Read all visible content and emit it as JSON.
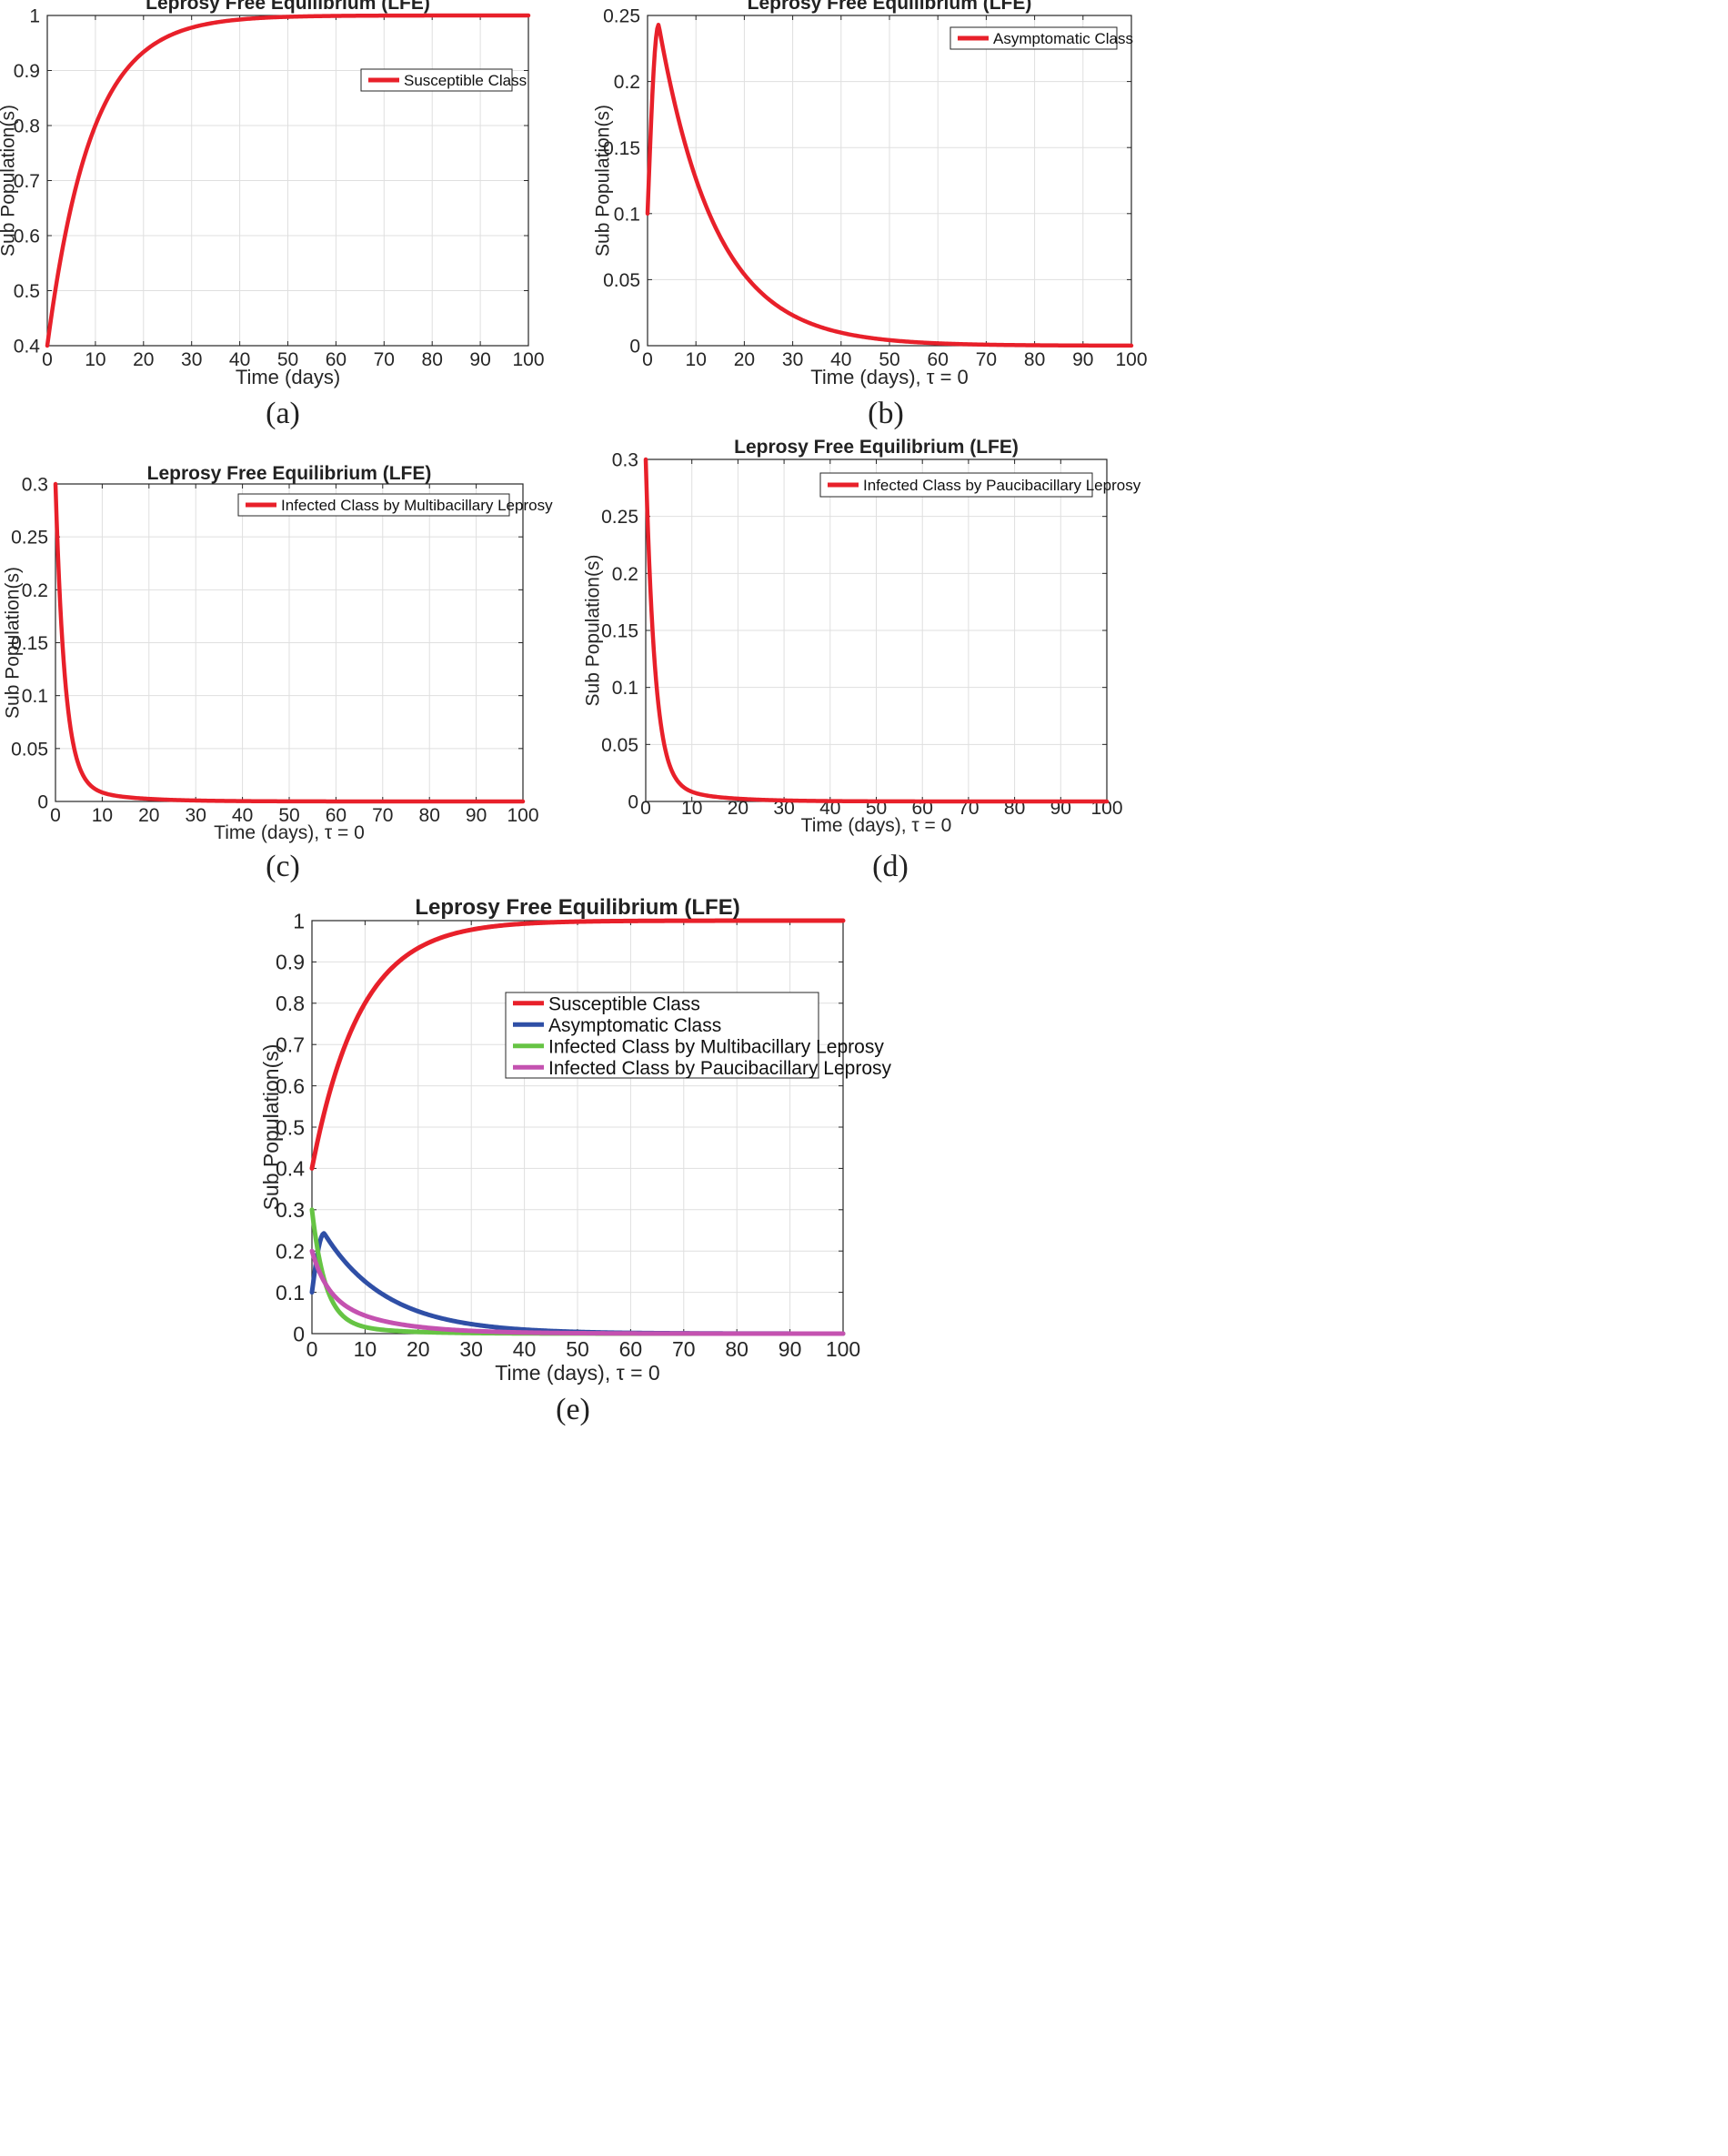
{
  "figure": {
    "description": "Five panel figure of Leprosy Free Equilibrium (LFE) simulations"
  },
  "chart_data": [
    {
      "panel": "a",
      "type": "line",
      "caption": "(a)",
      "title": "Leprosy Free Equilibrium (LFE)",
      "xlabel": "Time (days)",
      "ylabel": "Sub Population(s)",
      "xlim": [
        0,
        100
      ],
      "ylim": [
        0.4,
        1
      ],
      "xticks": [
        0,
        10,
        20,
        30,
        40,
        50,
        60,
        70,
        80,
        90,
        100
      ],
      "yticks": [
        0.4,
        0.5,
        0.6,
        0.7,
        0.8,
        0.9,
        1
      ],
      "ytick_labels": [
        "0.4",
        "0.5",
        "0.6",
        "0.7",
        "0.8",
        "0.9",
        "1"
      ],
      "grid": true,
      "legend_position": "upper-right-inset",
      "series": [
        {
          "name": "Susceptible Class",
          "color": "#e8202a",
          "model": "rise",
          "params": {
            "start": 0.4,
            "end": 1.0,
            "rate": 0.11
          }
        }
      ]
    },
    {
      "panel": "b",
      "type": "line",
      "caption": "(b)",
      "title": "Leprosy Free Equilibrium (LFE)",
      "xlabel": "Time (days), τ = 0",
      "ylabel": "Sub Population(s)",
      "xlim": [
        0,
        100
      ],
      "ylim": [
        0,
        0.25
      ],
      "xticks": [
        0,
        10,
        20,
        30,
        40,
        50,
        60,
        70,
        80,
        90,
        100
      ],
      "yticks": [
        0,
        0.05,
        0.1,
        0.15,
        0.2,
        0.25
      ],
      "ytick_labels": [
        "0",
        "0.05",
        "0.1",
        "0.15",
        "0.2",
        "0.25"
      ],
      "grid": true,
      "legend_position": "top-right",
      "series": [
        {
          "name": "Asymptomatic Class",
          "color": "#e8202a",
          "model": "peak",
          "params": {
            "start": 0.1,
            "peak": 0.243,
            "peak_t": 2.3,
            "decay": 0.085
          }
        }
      ]
    },
    {
      "panel": "c",
      "type": "line",
      "caption": "(c)",
      "title": "Leprosy Free Equilibrium (LFE)",
      "xlabel": "Time (days), τ = 0",
      "ylabel": "Sub Population(s)",
      "xlim": [
        0,
        100
      ],
      "ylim": [
        0,
        0.3
      ],
      "xticks": [
        0,
        10,
        20,
        30,
        40,
        50,
        60,
        70,
        80,
        90,
        100
      ],
      "yticks": [
        0,
        0.05,
        0.1,
        0.15,
        0.2,
        0.25,
        0.3
      ],
      "ytick_labels": [
        "0",
        "0.05",
        "0.1",
        "0.15",
        "0.2",
        "0.25",
        "0.3"
      ],
      "grid": true,
      "legend_position": "top-right",
      "series": [
        {
          "name": "Infected Class by Multibacillary Leprosy",
          "color": "#e8202a",
          "model": "decay2",
          "params": {
            "start": 0.3,
            "fast_weight": 0.94,
            "fast_rate": 0.5,
            "slow_rate": 0.1
          }
        }
      ]
    },
    {
      "panel": "d",
      "type": "line",
      "caption": "(d)",
      "title": "Leprosy Free Equilibrium (LFE)",
      "xlabel": "Time (days), τ = 0",
      "ylabel": "Sub Population(s)",
      "xlim": [
        0,
        100
      ],
      "ylim": [
        0,
        0.3
      ],
      "xticks": [
        0,
        10,
        20,
        30,
        40,
        50,
        60,
        70,
        80,
        90,
        100
      ],
      "yticks": [
        0,
        0.05,
        0.1,
        0.15,
        0.2,
        0.25,
        0.3
      ],
      "ytick_labels": [
        "0",
        "0.05",
        "0.1",
        "0.15",
        "0.2",
        "0.25",
        "0.3"
      ],
      "grid": true,
      "legend_position": "top-right",
      "series": [
        {
          "name": "Infected Class by Paucibacillary Leprosy",
          "color": "#e8202a",
          "model": "decay2",
          "params": {
            "start": 0.3,
            "fast_weight": 0.94,
            "fast_rate": 0.5,
            "slow_rate": 0.1
          }
        }
      ]
    },
    {
      "panel": "e",
      "type": "line",
      "caption": "(e)",
      "title": "Leprosy Free Equilibrium (LFE)",
      "xlabel": "Time (days), τ = 0",
      "ylabel": "Sub Population(s)",
      "xlim": [
        0,
        100
      ],
      "ylim": [
        0,
        1
      ],
      "xticks": [
        0,
        10,
        20,
        30,
        40,
        50,
        60,
        70,
        80,
        90,
        100
      ],
      "yticks": [
        0,
        0.1,
        0.2,
        0.3,
        0.4,
        0.5,
        0.6,
        0.7,
        0.8,
        0.9,
        1
      ],
      "ytick_labels": [
        "0",
        "0.1",
        "0.2",
        "0.3",
        "0.4",
        "0.5",
        "0.6",
        "0.7",
        "0.8",
        "0.9",
        "1"
      ],
      "grid": true,
      "legend_position": "center-right",
      "series": [
        {
          "name": "Susceptible Class",
          "color": "#e8202a",
          "model": "rise",
          "params": {
            "start": 0.4,
            "end": 1.0,
            "rate": 0.11
          }
        },
        {
          "name": "Asymptomatic Class",
          "color": "#2f4fa6",
          "model": "peak",
          "params": {
            "start": 0.1,
            "peak": 0.243,
            "peak_t": 2.3,
            "decay": 0.085
          }
        },
        {
          "name": "Infected Class by Multibacillary Leprosy",
          "color": "#66c444",
          "model": "decay2",
          "params": {
            "start": 0.3,
            "fast_weight": 0.9,
            "fast_rate": 0.4,
            "slow_rate": 0.1
          }
        },
        {
          "name": "Infected Class by Paucibacillary Leprosy",
          "color": "#c452b0",
          "model": "decay2",
          "params": {
            "start": 0.2,
            "fast_weight": 0.5,
            "fast_rate": 0.35,
            "slow_rate": 0.09
          }
        }
      ]
    }
  ]
}
